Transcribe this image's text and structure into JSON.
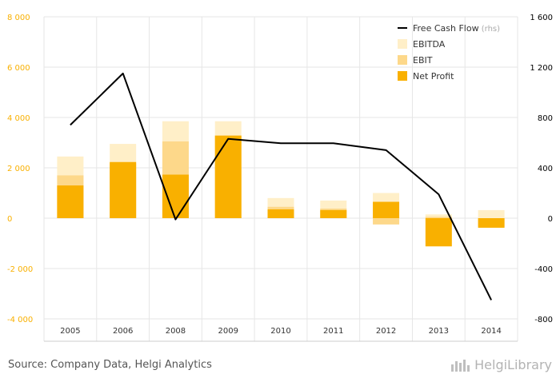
{
  "chart_data": {
    "type": "bar",
    "categories": [
      "2005",
      "2006",
      "2008",
      "2009",
      "2010",
      "2011",
      "2012",
      "2013",
      "2014"
    ],
    "series": [
      {
        "name": "EBITDA",
        "values": [
          2450,
          2950,
          3850,
          3850,
          800,
          700,
          1000,
          150,
          320
        ],
        "color": "#ffefc8"
      },
      {
        "name": "EBIT",
        "values": [
          1700,
          2180,
          3050,
          3280,
          450,
          380,
          -250,
          50,
          -320
        ],
        "color": "#fdd88a"
      },
      {
        "name": "Net Profit",
        "values": [
          1300,
          2230,
          1730,
          3280,
          350,
          320,
          650,
          -1120,
          -380
        ],
        "color": "#f9b000"
      }
    ],
    "line_series": {
      "name": "Free Cash Flow",
      "axis": "rhs",
      "color": "#000000",
      "values": [
        740,
        1150,
        -10,
        630,
        595,
        595,
        540,
        190,
        -650
      ]
    },
    "y_left": {
      "min": -4000,
      "max": 8000,
      "ticks": [
        -4000,
        -2000,
        0,
        2000,
        4000,
        6000,
        8000
      ],
      "tick_labels": [
        "-4 000",
        "-2 000",
        "0",
        "2 000",
        "4 000",
        "6 000",
        "8 000"
      ]
    },
    "y_right": {
      "min": -800,
      "max": 1600,
      "ticks": [
        -800,
        -400,
        0,
        400,
        800,
        1200,
        1600
      ],
      "tick_labels": [
        "-800",
        "-400",
        "0",
        "400",
        "800",
        "1 200",
        "1 600"
      ]
    },
    "legend": [
      {
        "label": "Free Cash Flow",
        "suffix": "(rhs)",
        "kind": "line",
        "color": "#000000"
      },
      {
        "label": "EBITDA",
        "kind": "box",
        "color": "#ffefc8"
      },
      {
        "label": "EBIT",
        "kind": "box",
        "color": "#fdd88a"
      },
      {
        "label": "Net Profit",
        "kind": "box",
        "color": "#f9b000"
      }
    ],
    "legend_position": "top-right",
    "colors": {
      "left_axis": "#f9b000",
      "right_axis": "#000000",
      "grid": "#e6e6e6"
    }
  },
  "footer": {
    "source": "Source: Company Data, Helgi Analytics",
    "brand": "HelgiLibrary"
  }
}
